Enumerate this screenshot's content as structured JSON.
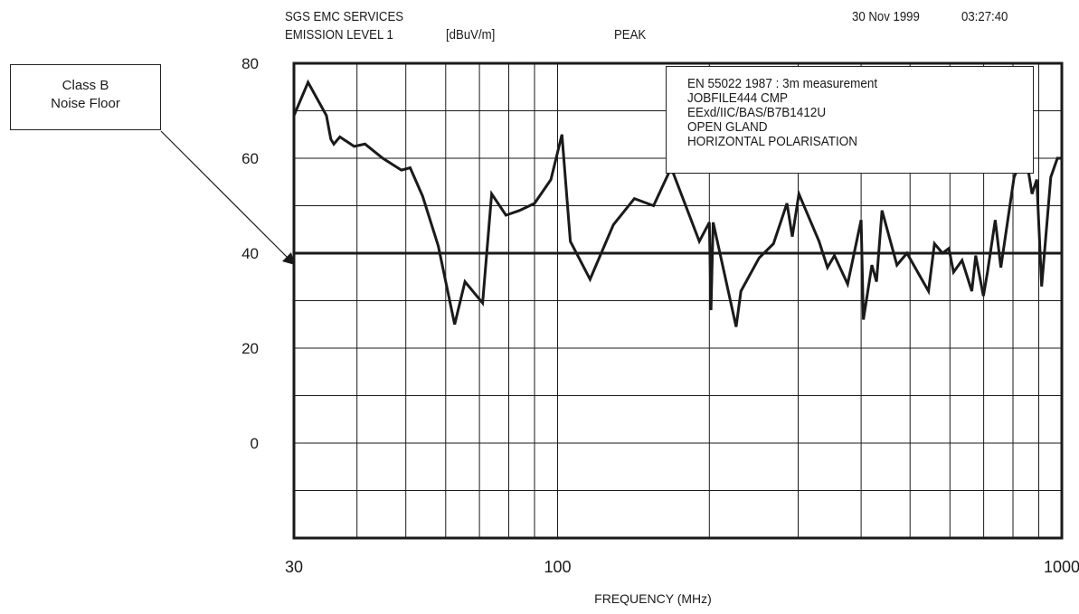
{
  "header": {
    "org": "SGS EMC SERVICES",
    "measure": "EMISSION LEVEL 1",
    "unit": "[dBuV/m]",
    "detector": "PEAK",
    "date": "30 Nov 1999",
    "time": "03:27:40"
  },
  "callout": {
    "lines": [
      "Class B",
      "Noise Floor"
    ]
  },
  "notes": [
    "EN 55022 1987 :  3m measurement",
    "JOBFILE444 CMP",
    "EExd/IIC/BAS/B7B1412U",
    "OPEN GLAND",
    "HORIZONTAL POLARISATION"
  ],
  "chart_data": {
    "type": "line",
    "xlabel": "FREQUENCY (MHz)",
    "ylabel": "",
    "x_scale": "log",
    "xlim": [
      30,
      1000
    ],
    "ylim": [
      -20,
      80
    ],
    "x_ticks": [
      30,
      100,
      1000
    ],
    "x_tick_labels": [
      "30",
      "100",
      "1000"
    ],
    "y_ticks": [
      80,
      60,
      40,
      20,
      0
    ],
    "y_tick_labels": [
      "80",
      "60",
      "40",
      "20",
      "0"
    ],
    "grid": true,
    "limit_line": {
      "name": "Class B Noise Floor",
      "y": 40
    },
    "series": [
      {
        "x": [
          30.0,
          32.0,
          34.8,
          35.5,
          36.0,
          37.0,
          39.5,
          41.5,
          45.0,
          49.0,
          51.0,
          54.0,
          58.0,
          62.5,
          65.5,
          71.0,
          74.0,
          79.0,
          84.0,
          90.0,
          97.0,
          102.0,
          106.0,
          116.0,
          129.0,
          142.0,
          155.0,
          168.0,
          191.0,
          200.0,
          201.5,
          203.5,
          226.0,
          231.0,
          251.0,
          268.0,
          285.0,
          292.0,
          301.0,
          330.0,
          343.0,
          354.0,
          376.0,
          400.0,
          404.0,
          420.0,
          429.0,
          440.0,
          471.0,
          493.0,
          544.0,
          559.0,
          580.0,
          597.0,
          610.0,
          634.0,
          663.0,
          675.0,
          699.0,
          712.0,
          738.0,
          757.0,
          804.0,
          819.0,
          836.0,
          850.0,
          873.0,
          892.0,
          912.0,
          951.0,
          980.0,
          1000.0
        ],
        "y": [
          69,
          76,
          69,
          64,
          63,
          64.5,
          62.5,
          63,
          60,
          57.5,
          58,
          52,
          41.5,
          25,
          34,
          29.5,
          52.5,
          48,
          49,
          50.5,
          55.5,
          65,
          42.5,
          34.5,
          46,
          51.5,
          50,
          58,
          42.5,
          46.5,
          28,
          46.5,
          24.5,
          32,
          39,
          42,
          50.5,
          43.5,
          52.5,
          42.5,
          37,
          39.5,
          33.5,
          47,
          26,
          37.5,
          34,
          49,
          37.5,
          40,
          32,
          42,
          40,
          41,
          36,
          38.5,
          32,
          39.5,
          31,
          36,
          47,
          37,
          56,
          58,
          59,
          60,
          52.5,
          55.5,
          33,
          56,
          60,
          60
        ]
      }
    ]
  }
}
